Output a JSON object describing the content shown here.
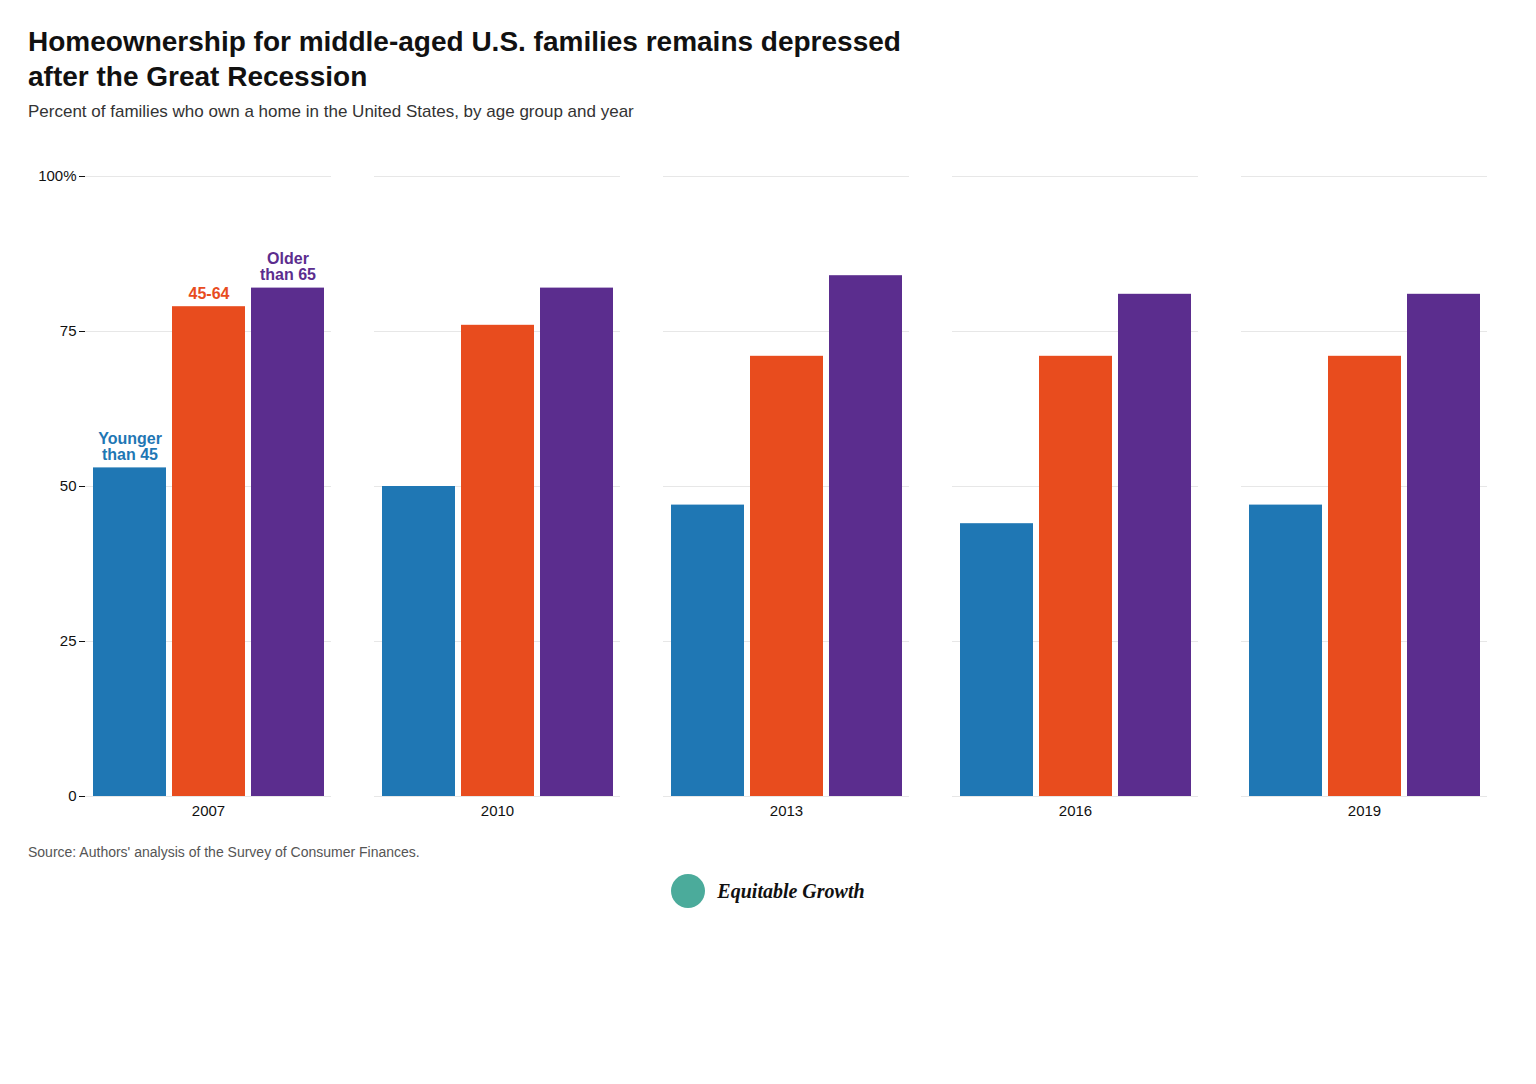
{
  "chart_data": {
    "type": "bar",
    "title": "Homeownership for middle-aged U.S. families remains depressed\nafter the Great Recession",
    "subtitle": "Percent of families who own a home in the United States, by age group and year",
    "caption": "Source: Authors' analysis of the Survey of Consumer Finances.",
    "annotations": [
      "Equitable Growth"
    ],
    "categories": [
      "2007",
      "2010",
      "2013",
      "2016",
      "2019"
    ],
    "series": [
      {
        "name": "Younger\nthan 45",
        "color": "#1F77B4",
        "values": [
          53,
          50,
          47,
          44,
          47
        ]
      },
      {
        "name": "45-64",
        "color": "#E84C1E",
        "values": [
          79,
          76,
          71,
          71,
          71
        ]
      },
      {
        "name": "Older\nthan 65",
        "color": "#5B2D8E",
        "values": [
          82,
          82,
          84,
          81,
          81
        ]
      }
    ],
    "ylim": [
      0,
      100
    ],
    "yticks": [
      0,
      25,
      50,
      75,
      {
        "value": 100,
        "label": "100%"
      }
    ],
    "grid": true
  }
}
